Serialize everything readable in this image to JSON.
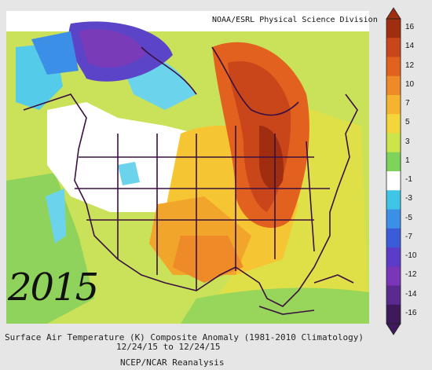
{
  "header": {
    "credit": "NOAA/ESRL Physical Science Division"
  },
  "caption": {
    "line1": "Surface Air Temperature (K) Composite Anomaly (1981-2010 Climatology)",
    "line2": "12/24/15   to 12/24/15",
    "line3": "NCEP/NCAR Reanalysis"
  },
  "annotation": {
    "year": "2015"
  },
  "colorbar": {
    "labels": [
      "16",
      "14",
      "12",
      "10",
      "7",
      "5",
      "3",
      "1",
      "-1",
      "-3",
      "-5",
      "-7",
      "-10",
      "-12",
      "-14",
      "-16"
    ],
    "colors": [
      "#a02d10",
      "#c8461a",
      "#e2611e",
      "#ee8a28",
      "#f6b32e",
      "#f4d63a",
      "#cde54a",
      "#7ed35a",
      "#ffffff",
      "#3fc6e6",
      "#3c8fe6",
      "#3c5bd8",
      "#5a3cc8",
      "#7a35b8",
      "#5b2a8e",
      "#3e1a5c"
    ]
  }
}
